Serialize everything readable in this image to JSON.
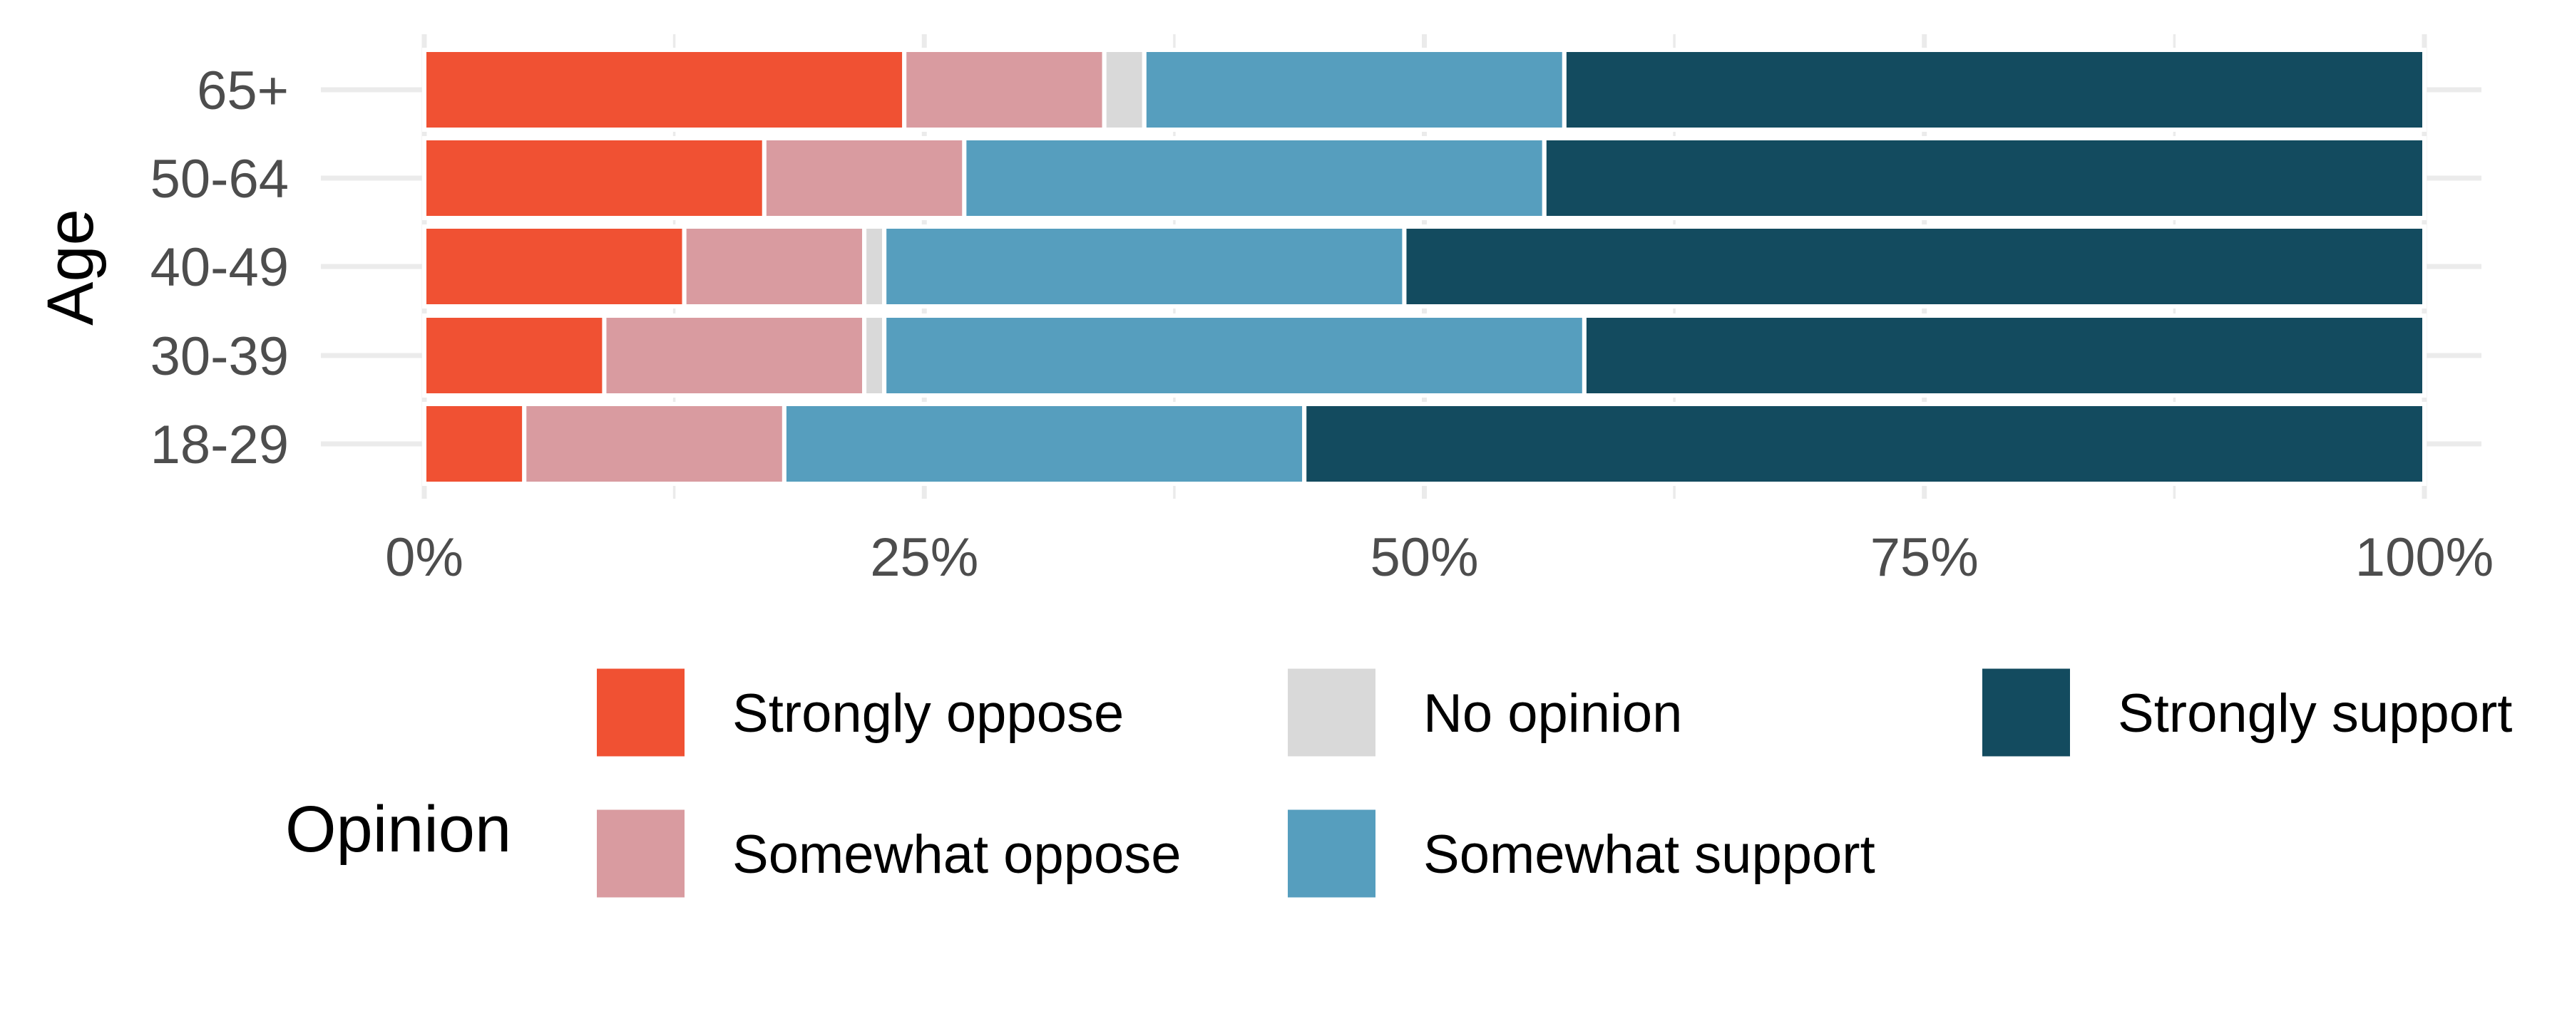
{
  "chart_data": {
    "type": "bar",
    "orientation": "horizontal",
    "stacked": "percent",
    "title": "",
    "xlabel": "",
    "ylabel": "Age",
    "categories": [
      "18-29",
      "30-39",
      "40-49",
      "50-64",
      "65+"
    ],
    "xlim": [
      0,
      1
    ],
    "x_ticks": [
      "0%",
      "25%",
      "50%",
      "75%",
      "100%"
    ],
    "grid": true,
    "legend_title": "Opinion",
    "legend_position": "bottom",
    "series": [
      {
        "name": "Strongly oppose",
        "color": "#f05133",
        "values": [
          0.05,
          0.09,
          0.13,
          0.17,
          0.24
        ]
      },
      {
        "name": "Somewhat oppose",
        "color": "#d99ba0",
        "values": [
          0.13,
          0.13,
          0.09,
          0.1,
          0.1
        ]
      },
      {
        "name": "No opinion",
        "color": "#d9d9d9",
        "values": [
          0.0,
          0.01,
          0.01,
          0.0,
          0.02
        ]
      },
      {
        "name": "Somewhat support",
        "color": "#569ebe",
        "values": [
          0.26,
          0.35,
          0.26,
          0.29,
          0.21
        ]
      },
      {
        "name": "Strongly support",
        "color": "#134b5f",
        "values": [
          0.56,
          0.42,
          0.51,
          0.44,
          0.43
        ]
      }
    ]
  }
}
